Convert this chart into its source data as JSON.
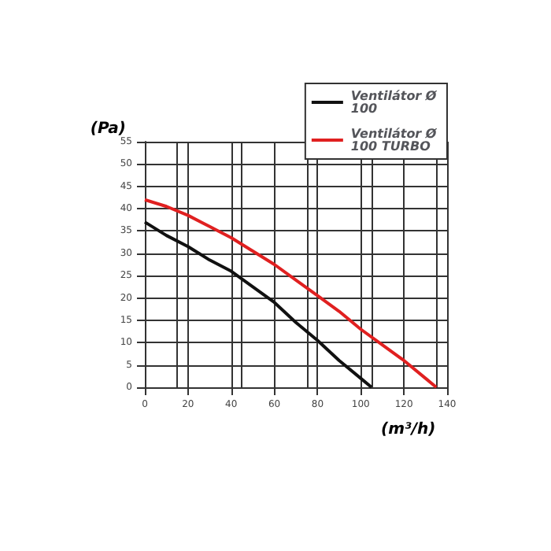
{
  "chart_data": {
    "type": "line",
    "xlabel": "(m³/h)",
    "ylabel": "(Pa)",
    "series": [
      {
        "name": "Ventilátor Ø 100",
        "color": "#111111",
        "x": [
          0,
          10,
          20,
          30,
          40,
          50,
          60,
          70,
          80,
          90,
          100,
          105
        ],
        "values": [
          37,
          34,
          31.5,
          28.5,
          26,
          22.5,
          19,
          14.5,
          10.5,
          6,
          2,
          0
        ]
      },
      {
        "name": "Ventilátor Ø 100 TURBO",
        "color": "#e02020",
        "x": [
          0,
          10,
          20,
          30,
          40,
          50,
          60,
          70,
          80,
          90,
          100,
          110,
          120,
          130,
          135
        ],
        "values": [
          42,
          40.5,
          38.5,
          36,
          33.5,
          30.5,
          27.5,
          24,
          20.5,
          17,
          13,
          9.5,
          6,
          2,
          0
        ]
      }
    ],
    "xlim": [
      0,
      140
    ],
    "xticks": [
      0,
      20,
      40,
      60,
      80,
      100,
      120,
      140
    ],
    "ylim": [
      0,
      55
    ],
    "yticks": [
      0,
      5,
      10,
      15,
      20,
      25,
      30,
      35,
      40,
      45,
      50,
      55
    ],
    "grid": true,
    "legend": "top right",
    "marker": "none",
    "line_style": "solid"
  }
}
